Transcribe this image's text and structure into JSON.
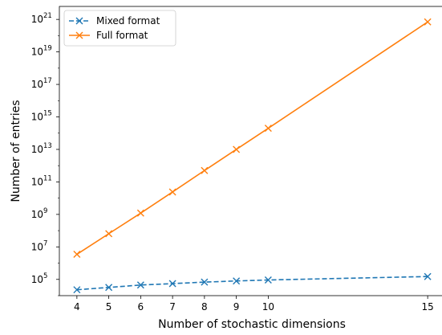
{
  "chart_data": {
    "type": "line",
    "x": [
      4,
      5,
      6,
      7,
      8,
      9,
      10,
      15
    ],
    "x_ticks": [
      4,
      5,
      6,
      7,
      8,
      9,
      10,
      15
    ],
    "xlabel": "Number of stochastic dimensions",
    "ylabel": "Number of entries",
    "yscale": "log",
    "ylim": [
      10000.0,
      6.3e+21
    ],
    "y_ticks": [
      {
        "base": "10",
        "exp": "5",
        "value": 100000.0
      },
      {
        "base": "10",
        "exp": "7",
        "value": 10000000.0
      },
      {
        "base": "10",
        "exp": "9",
        "value": 1000000000.0
      },
      {
        "base": "10",
        "exp": "11",
        "value": 100000000000.0
      },
      {
        "base": "10",
        "exp": "13",
        "value": 10000000000000.0
      },
      {
        "base": "10",
        "exp": "15",
        "value": 1000000000000000.0
      },
      {
        "base": "10",
        "exp": "17",
        "value": 1e+17
      },
      {
        "base": "10",
        "exp": "19",
        "value": 1e+19
      },
      {
        "base": "10",
        "exp": "21",
        "value": 1e+21
      }
    ],
    "grid": false,
    "legend_position": "top-left",
    "series": [
      {
        "name": "Mixed format",
        "color": "#1f77b4",
        "line_style": "dashed",
        "marker": "x",
        "values": [
          23000.0,
          32000.0,
          45000.0,
          55000.0,
          68000.0,
          80000.0,
          92000.0,
          150000.0
        ]
      },
      {
        "name": "Full format",
        "color": "#ff7f0e",
        "line_style": "solid",
        "marker": "x",
        "values": [
          3500000.0,
          65000000.0,
          1200000000.0,
          24000000000.0,
          500000000000.0,
          10000000000000.0,
          200000000000000.0,
          7e+20
        ]
      }
    ]
  }
}
